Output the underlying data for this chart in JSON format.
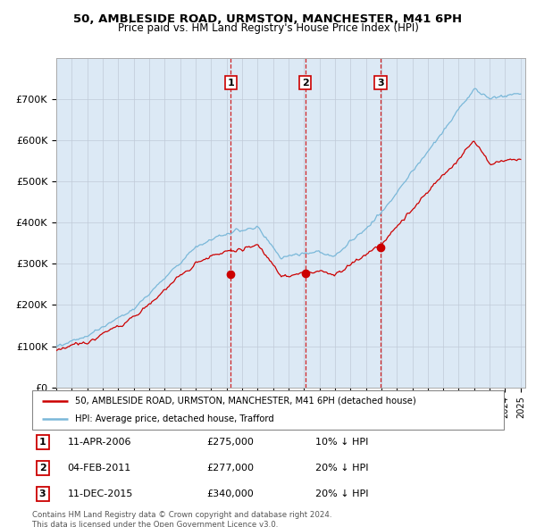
{
  "title": "50, AMBLESIDE ROAD, URMSTON, MANCHESTER, M41 6PH",
  "subtitle": "Price paid vs. HM Land Registry's House Price Index (HPI)",
  "ylim": [
    0,
    800000
  ],
  "yticks": [
    0,
    100000,
    200000,
    300000,
    400000,
    500000,
    600000,
    700000
  ],
  "ytick_labels": [
    "£0",
    "£100K",
    "£200K",
    "£300K",
    "£400K",
    "£500K",
    "£600K",
    "£700K"
  ],
  "hpi_color": "#7ab8d9",
  "price_color": "#cc0000",
  "vline_color": "#cc0000",
  "bg_color": "#dce9f5",
  "transactions": [
    {
      "date": "11-APR-2006",
      "price": 275000,
      "year": 2006.28,
      "label": "1",
      "pct": "10%"
    },
    {
      "date": "04-FEB-2011",
      "price": 277000,
      "year": 2011.09,
      "label": "2",
      "pct": "20%"
    },
    {
      "date": "11-DEC-2015",
      "price": 340000,
      "year": 2015.95,
      "label": "3",
      "pct": "20%"
    }
  ],
  "legend_line1": "50, AMBLESIDE ROAD, URMSTON, MANCHESTER, M41 6PH (detached house)",
  "legend_line2": "HPI: Average price, detached house, Trafford",
  "footnote": "Contains HM Land Registry data © Crown copyright and database right 2024.\nThis data is licensed under the Open Government Licence v3.0."
}
